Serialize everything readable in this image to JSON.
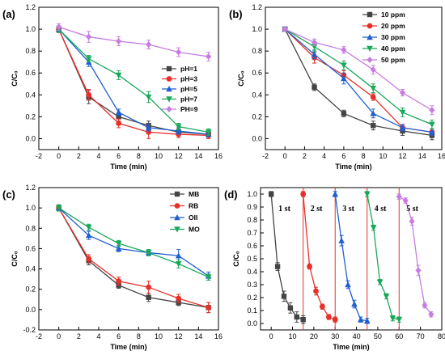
{
  "chart_data": [
    {
      "id": "a",
      "panel_label": "(a)",
      "type": "line",
      "xlabel": "Time (min)",
      "ylabel": "C/C₀",
      "xlim": [
        -2,
        16
      ],
      "ylim": [
        -0.1,
        1.2
      ],
      "xticks": [
        -2,
        0,
        2,
        4,
        6,
        8,
        10,
        12,
        14,
        16
      ],
      "yticks": [
        0.0,
        0.2,
        0.4,
        0.6,
        0.8,
        1.0,
        1.2
      ],
      "legend_position": "bottom-right",
      "x": [
        0,
        3,
        6,
        9,
        12,
        15
      ],
      "series": [
        {
          "name": "pH=1",
          "color": "#444444",
          "marker": "square",
          "values": [
            1.0,
            0.38,
            0.2,
            0.12,
            0.06,
            0.04
          ],
          "err": [
            0.03,
            0.06,
            0.04,
            0.04,
            0.03,
            0.03
          ]
        },
        {
          "name": "pH=3",
          "color": "#e8302a",
          "marker": "circle",
          "values": [
            1.0,
            0.4,
            0.14,
            0.06,
            0.04,
            0.03
          ],
          "err": [
            0.03,
            0.05,
            0.04,
            0.06,
            0.03,
            0.03
          ]
        },
        {
          "name": "pH=5",
          "color": "#1f5fd0",
          "marker": "triangle-up",
          "values": [
            1.0,
            0.7,
            0.24,
            0.1,
            0.07,
            0.04
          ],
          "err": [
            0.03,
            0.04,
            0.03,
            0.03,
            0.03,
            0.02
          ]
        },
        {
          "name": "pH=7",
          "color": "#19a85a",
          "marker": "triangle-down",
          "values": [
            1.0,
            0.73,
            0.58,
            0.38,
            0.11,
            0.06
          ],
          "err": [
            0.03,
            0.03,
            0.04,
            0.05,
            0.03,
            0.03
          ]
        },
        {
          "name": "PH=9",
          "color": "#c77ce0",
          "marker": "diamond",
          "values": [
            1.02,
            0.93,
            0.89,
            0.86,
            0.79,
            0.75
          ],
          "err": [
            0.03,
            0.05,
            0.04,
            0.04,
            0.04,
            0.04
          ]
        }
      ]
    },
    {
      "id": "b",
      "panel_label": "(b)",
      "type": "line",
      "xlabel": "Time (min)",
      "ylabel": "C/C₀",
      "xlim": [
        -2,
        16
      ],
      "ylim": [
        -0.1,
        1.2
      ],
      "xticks": [
        -2,
        0,
        2,
        4,
        6,
        8,
        10,
        12,
        14,
        16
      ],
      "yticks": [
        0.0,
        0.2,
        0.4,
        0.6,
        0.8,
        1.0,
        1.2
      ],
      "legend_position": "top-right",
      "x": [
        0,
        3,
        6,
        9,
        12,
        15
      ],
      "series": [
        {
          "name": "10 ppm",
          "color": "#444444",
          "marker": "square",
          "values": [
            1.0,
            0.47,
            0.23,
            0.12,
            0.07,
            0.03
          ],
          "err": [
            0.02,
            0.03,
            0.03,
            0.04,
            0.04,
            0.04
          ]
        },
        {
          "name": "20 ppm",
          "color": "#e8302a",
          "marker": "circle",
          "values": [
            1.0,
            0.74,
            0.58,
            0.38,
            0.1,
            0.06
          ],
          "err": [
            0.02,
            0.05,
            0.04,
            0.03,
            0.03,
            0.03
          ]
        },
        {
          "name": "30 ppm",
          "color": "#1f5fd0",
          "marker": "triangle-up",
          "values": [
            1.0,
            0.77,
            0.55,
            0.23,
            0.1,
            0.06
          ],
          "err": [
            0.02,
            0.04,
            0.05,
            0.04,
            0.03,
            0.03
          ]
        },
        {
          "name": "40 ppm",
          "color": "#19a85a",
          "marker": "triangle-down",
          "values": [
            1.0,
            0.84,
            0.67,
            0.46,
            0.24,
            0.13
          ],
          "err": [
            0.02,
            0.04,
            0.04,
            0.04,
            0.04,
            0.04
          ]
        },
        {
          "name": "50 ppm",
          "color": "#c77ce0",
          "marker": "diamond",
          "values": [
            1.0,
            0.88,
            0.81,
            0.63,
            0.42,
            0.26
          ],
          "err": [
            0.02,
            0.03,
            0.03,
            0.04,
            0.03,
            0.04
          ]
        }
      ]
    },
    {
      "id": "c",
      "panel_label": "(c)",
      "type": "line",
      "xlabel": "Time (min)",
      "ylabel": "C/C₀",
      "xlim": [
        -2,
        16
      ],
      "ylim": [
        -0.2,
        1.2
      ],
      "xticks": [
        -2,
        0,
        2,
        4,
        6,
        8,
        10,
        12,
        14,
        16
      ],
      "yticks": [
        -0.2,
        0.0,
        0.2,
        0.4,
        0.6,
        0.8,
        1.0,
        1.2
      ],
      "legend_position": "top-right",
      "x": [
        0,
        3,
        6,
        9,
        12,
        15
      ],
      "series": [
        {
          "name": "MB",
          "color": "#444444",
          "marker": "square",
          "values": [
            1.0,
            0.48,
            0.24,
            0.12,
            0.07,
            0.02
          ],
          "err": [
            0.03,
            0.04,
            0.03,
            0.04,
            0.03,
            0.05
          ]
        },
        {
          "name": "RB",
          "color": "#e8302a",
          "marker": "circle",
          "values": [
            1.0,
            0.5,
            0.28,
            0.22,
            0.11,
            0.02
          ],
          "err": [
            0.03,
            0.04,
            0.04,
            0.06,
            0.04,
            0.05
          ]
        },
        {
          "name": "OII",
          "color": "#1f5fd0",
          "marker": "triangle-up",
          "values": [
            1.0,
            0.73,
            0.6,
            0.56,
            0.53,
            0.33
          ],
          "err": [
            0.03,
            0.04,
            0.03,
            0.03,
            0.06,
            0.04
          ]
        },
        {
          "name": "MO",
          "color": "#19a85a",
          "marker": "triangle-down",
          "values": [
            1.0,
            0.81,
            0.65,
            0.56,
            0.45,
            0.32
          ],
          "err": [
            0.03,
            0.03,
            0.03,
            0.03,
            0.04,
            0.03
          ]
        }
      ]
    },
    {
      "id": "d",
      "panel_label": "(d)",
      "type": "line",
      "xlabel": "Time (min)",
      "ylabel": "C/C₀",
      "xlim": [
        -5,
        80
      ],
      "ylim": [
        -0.05,
        1.05
      ],
      "xticks": [
        0,
        10,
        20,
        30,
        40,
        50,
        60,
        70,
        80
      ],
      "yticks": [
        0.0,
        0.1,
        0.2,
        0.3,
        0.4,
        0.5,
        0.6,
        0.7,
        0.8,
        0.9,
        1.0
      ],
      "cycle_boundaries": [
        15,
        30,
        45,
        60
      ],
      "series": [
        {
          "name": "1 st",
          "color": "#444444",
          "marker": "square",
          "x": [
            0,
            3,
            6,
            9,
            12,
            15
          ],
          "values": [
            1.0,
            0.44,
            0.21,
            0.12,
            0.05,
            0.03
          ],
          "err": [
            0.02,
            0.03,
            0.04,
            0.04,
            0.04,
            0.03
          ]
        },
        {
          "name": "2 st",
          "color": "#e8302a",
          "marker": "circle",
          "x": [
            15,
            18,
            21,
            24,
            27,
            30
          ],
          "values": [
            1.0,
            0.44,
            0.25,
            0.13,
            0.05,
            0.03
          ],
          "err": [
            0.02,
            0.02,
            0.03,
            0.02,
            0.02,
            0.02
          ]
        },
        {
          "name": "3 st",
          "color": "#1f5fd0",
          "marker": "triangle-up",
          "x": [
            30,
            33,
            36,
            39,
            42,
            45
          ],
          "values": [
            1.0,
            0.64,
            0.3,
            0.15,
            0.03,
            0.02
          ],
          "err": [
            0.02,
            0.04,
            0.03,
            0.03,
            0.02,
            0.02
          ]
        },
        {
          "name": "4 st",
          "color": "#19a85a",
          "marker": "triangle-down",
          "x": [
            45,
            48,
            51,
            54,
            57,
            60
          ],
          "values": [
            1.0,
            0.74,
            0.32,
            0.21,
            0.04,
            0.03
          ],
          "err": [
            0.02,
            0.02,
            0.02,
            0.02,
            0.02,
            0.02
          ]
        },
        {
          "name": "5 st",
          "color": "#c77ce0",
          "marker": "diamond",
          "x": [
            60,
            63,
            66,
            69,
            72,
            75
          ],
          "values": [
            0.98,
            0.95,
            0.79,
            0.41,
            0.14,
            0.07
          ],
          "err": [
            0.02,
            0.02,
            0.03,
            0.04,
            0.02,
            0.02
          ]
        }
      ]
    }
  ]
}
